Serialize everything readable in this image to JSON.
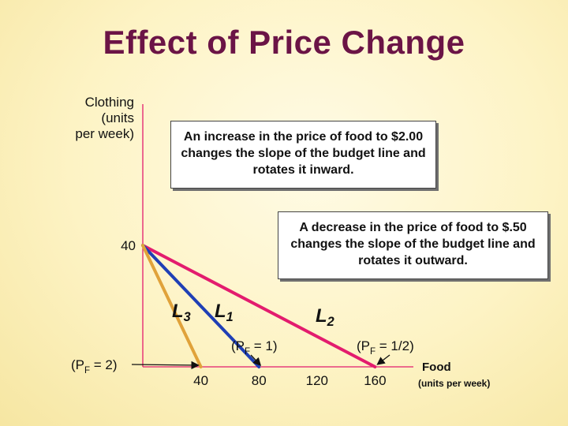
{
  "slide": {
    "title": "Effect of Price Change"
  },
  "annotations": [
    "An increase in the price of food to $2.00 changes the slope of the budget line and rotates it inward.",
    "A decrease in the price of food to $.50 changes the slope of the budget line and rotates it outward."
  ],
  "colors": {
    "title": "#6b1446",
    "L1": "#1f3fb5",
    "L2": "#e31c6e",
    "L3": "#e0a23a",
    "axis": "#e31c6e"
  },
  "chart_data": {
    "type": "line",
    "ylabel": "Clothing (units per week)",
    "ylabel_lines": [
      "Clothing",
      "(units",
      "per week)"
    ],
    "xlabel": "Food",
    "xlabel_units": "(units per week)",
    "y_ticks": [
      40
    ],
    "x_ticks": [
      40,
      80,
      120,
      160
    ],
    "x_tick_labels": [
      "40",
      "80",
      "120",
      "160"
    ],
    "xlim": [
      0,
      170
    ],
    "ylim": [
      0,
      80
    ],
    "series": [
      {
        "name": "L1",
        "label_main": "L",
        "label_sub": "1",
        "price_label": "(PF = 1)",
        "price_parts": [
          "(P",
          "F",
          " = 1)"
        ],
        "points": [
          [
            0,
            40
          ],
          [
            80,
            0
          ]
        ],
        "color": "#1f3fb5"
      },
      {
        "name": "L2",
        "label_main": "L",
        "label_sub": "2",
        "price_label": "(PF = 1/2)",
        "price_parts": [
          "(P",
          "F",
          " = 1/2)"
        ],
        "points": [
          [
            0,
            40
          ],
          [
            160,
            0
          ]
        ],
        "color": "#e31c6e"
      },
      {
        "name": "L3",
        "label_main": "L",
        "label_sub": "3",
        "price_label": "(PF = 2)",
        "price_parts": [
          "(P",
          "F",
          " = 2)"
        ],
        "points": [
          [
            0,
            40
          ],
          [
            40,
            0
          ]
        ],
        "color": "#e0a23a"
      }
    ]
  }
}
